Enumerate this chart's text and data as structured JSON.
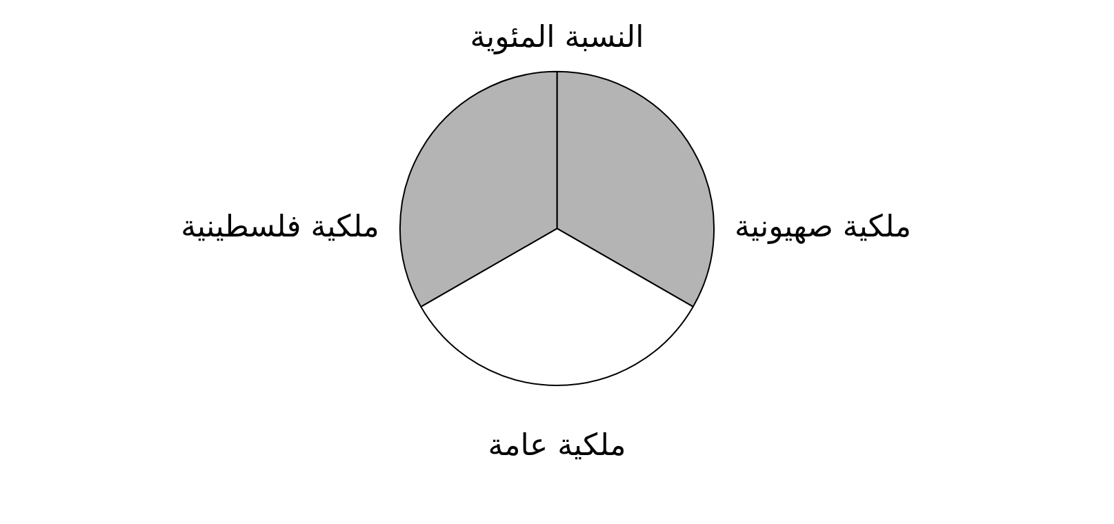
{
  "chart_data": {
    "type": "pie",
    "title": "النسبة المئوية",
    "categories": [
      "ملكية صهيونية",
      "ملكية عامة",
      "ملكية فلسطينية"
    ],
    "values": [
      33.3,
      33.4,
      33.3
    ],
    "colors": [
      "#b4b4b4",
      "#ffffff",
      "#b4b4b4"
    ],
    "legend": false
  }
}
